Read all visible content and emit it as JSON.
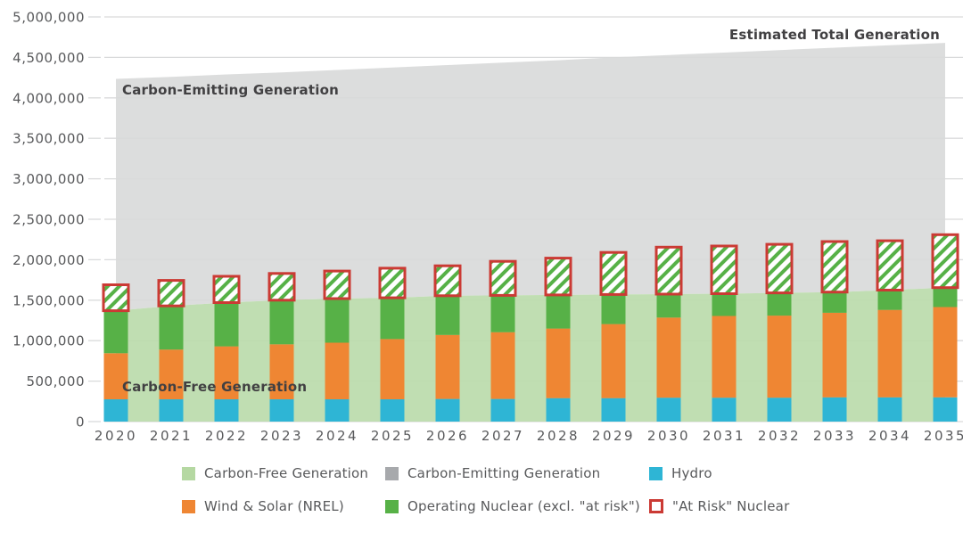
{
  "annotations": {
    "carbon_emitting": "Carbon-Emitting Generation",
    "estimated_total": "Estimated Total Generation",
    "carbon_free": "Carbon-Free Generation"
  },
  "colors": {
    "carbon_free_area": "#bddcae",
    "carbon_free_legend": "#b5d8a2",
    "carbon_emitting_area": "#d8d9d9",
    "carbon_emitting_legend": "#a7a9ac",
    "hydro": "#2eb5d5",
    "wind_solar": "#ef8633",
    "operating_nuclear": "#57b147",
    "at_risk_border": "#cb3a34",
    "at_risk_hatch": "#57b147",
    "grid": "#d9dadb",
    "axis_text": "#58595b",
    "annotation_text": "#414042"
  },
  "legend": {
    "rows": [
      [
        {
          "swatch": "carbon_free_legend",
          "label": "Carbon-Free Generation"
        },
        {
          "swatch": "carbon_emitting_legend",
          "label": "Carbon-Emitting Generation"
        },
        {
          "swatch": "hydro",
          "label": "Hydro"
        }
      ],
      [
        {
          "swatch": "wind_solar",
          "label": "Wind & Solar (NREL)"
        },
        {
          "swatch": "operating_nuclear",
          "label": "Operating Nuclear (excl. \"at risk\")"
        },
        {
          "swatch": "at_risk",
          "label": "\"At Risk\" Nuclear"
        }
      ]
    ]
  },
  "chart_data": {
    "type": "stacked-bar-with-areas",
    "years": [
      2020,
      2021,
      2022,
      2023,
      2024,
      2025,
      2026,
      2027,
      2028,
      2029,
      2030,
      2031,
      2032,
      2033,
      2034,
      2035
    ],
    "stacked_bars": [
      {
        "name": "Hydro",
        "color_key": "hydro",
        "values": [
          275000,
          275000,
          275000,
          275000,
          275000,
          275000,
          280000,
          280000,
          290000,
          290000,
          295000,
          295000,
          295000,
          300000,
          300000,
          300000
        ]
      },
      {
        "name": "Wind & Solar (NREL)",
        "color_key": "wind_solar",
        "values": [
          570000,
          615000,
          655000,
          680000,
          700000,
          745000,
          790000,
          825000,
          860000,
          915000,
          990000,
          1010000,
          1015000,
          1045000,
          1080000,
          1115000
        ]
      },
      {
        "name": "Operating Nuclear (excl. \"at risk\")",
        "color_key": "operating_nuclear",
        "values": [
          525000,
          540000,
          540000,
          545000,
          545000,
          510000,
          485000,
          455000,
          415000,
          365000,
          290000,
          275000,
          280000,
          255000,
          245000,
          240000
        ]
      }
    ],
    "at_risk_nuclear": {
      "name": "\"At Risk\" Nuclear",
      "values": [
        320000,
        315000,
        325000,
        330000,
        340000,
        365000,
        370000,
        420000,
        455000,
        520000,
        580000,
        590000,
        600000,
        625000,
        610000,
        655000
      ]
    },
    "carbon_free_area": {
      "name": "Carbon-Free Generation",
      "values": [
        1370000,
        1430000,
        1470000,
        1500000,
        1520000,
        1530000,
        1555000,
        1560000,
        1565000,
        1570000,
        1575000,
        1580000,
        1590000,
        1600000,
        1625000,
        1655000
      ]
    },
    "total_area": {
      "name": "Estimated Total Generation",
      "values": [
        4235000,
        4260000,
        4290000,
        4315000,
        4345000,
        4375000,
        4405000,
        4435000,
        4465000,
        4500000,
        4530000,
        4560000,
        4590000,
        4620000,
        4650000,
        4680000
      ]
    },
    "ylim": [
      0,
      5000000
    ],
    "ytick_step": 500000,
    "grid": true,
    "legend_position": "bottom"
  }
}
